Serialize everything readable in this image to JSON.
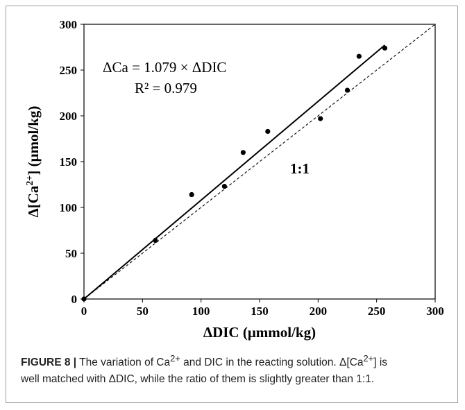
{
  "chart_data": {
    "type": "scatter",
    "title": "",
    "xlabel_prefix": "ΔDIC (μmmol/kg)",
    "ylabel_main": "Δ[Ca",
    "ylabel_sup": "2+",
    "ylabel_tail": "] (μmol/kg)",
    "xlim": [
      0,
      300
    ],
    "ylim": [
      0,
      300
    ],
    "x_ticks": [
      0,
      50,
      100,
      150,
      200,
      250,
      300
    ],
    "y_ticks": [
      0,
      50,
      100,
      150,
      200,
      250,
      300
    ],
    "points": [
      {
        "x": 0,
        "y": 0
      },
      {
        "x": 61,
        "y": 64
      },
      {
        "x": 92,
        "y": 114
      },
      {
        "x": 120,
        "y": 123
      },
      {
        "x": 136,
        "y": 160
      },
      {
        "x": 157,
        "y": 183
      },
      {
        "x": 202,
        "y": 197
      },
      {
        "x": 225,
        "y": 228
      },
      {
        "x": 235,
        "y": 265
      },
      {
        "x": 257,
        "y": 274
      }
    ],
    "fit_line": {
      "slope": 1.079,
      "x_end": 257
    },
    "reference_line": {
      "label": "1:1",
      "style": "dashed"
    },
    "equation": "ΔCa = 1.079 × ΔDIC",
    "r_squared": "R² = 0.979",
    "grid": false
  },
  "caption": {
    "figure_label": "FIGURE 8 |",
    "line1_a": " The variation of Ca",
    "line1_sup1": "2+",
    "line1_b": " and DIC in the reacting solution. Δ[Ca",
    "line1_sup2": "2+",
    "line1_c": "] is",
    "line2": "well matched with ΔDIC, while the ratio of them is slightly greater than 1:1."
  }
}
